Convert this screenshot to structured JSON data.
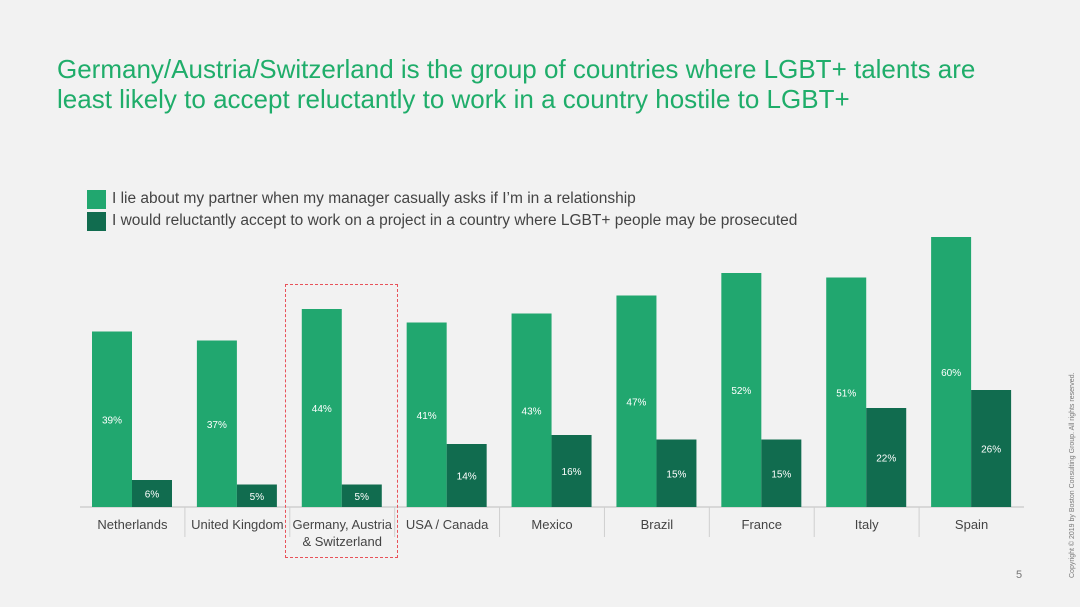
{
  "title_line1": "Germany/Austria/Switzerland is the group of countries where LGBT+ talents are",
  "title_line2": "least likely to accept reluctantly to work in a country hostile to LGBT+",
  "page_number": "5",
  "copyright": "Copyright © 2019 by Boston Consulting Group. All rights reserved.",
  "colors": {
    "light": "#21a76f",
    "dark": "#116c4f",
    "title": "#1fad6a",
    "highlight": "#e8525a"
  },
  "chart_data": {
    "type": "bar",
    "categories": [
      "Netherlands",
      "United Kingdom",
      "Germany, Austria\n& Switzerland",
      "USA / Canada",
      "Mexico",
      "Brazil",
      "France",
      "Italy",
      "Spain"
    ],
    "series": [
      {
        "name": "I lie about my partner when my manager casually asks if I’m in a relationship",
        "values": [
          39,
          37,
          44,
          41,
          43,
          47,
          52,
          51,
          60
        ]
      },
      {
        "name": "I would reluctantly accept to work on a project in a country where LGBT+ people may be prosecuted",
        "values": [
          6,
          5,
          5,
          14,
          16,
          15,
          15,
          22,
          26
        ]
      }
    ],
    "value_labels": [
      [
        "39%",
        "37%",
        "44%",
        "41%",
        "43%",
        "47%",
        "52%",
        "51%",
        "60%"
      ],
      [
        "6%",
        "5%",
        "5%",
        "14%",
        "16%",
        "15%",
        "15%",
        "22%",
        "26%"
      ]
    ],
    "highlighted_category": "Germany, Austria\n& Switzerland"
  }
}
